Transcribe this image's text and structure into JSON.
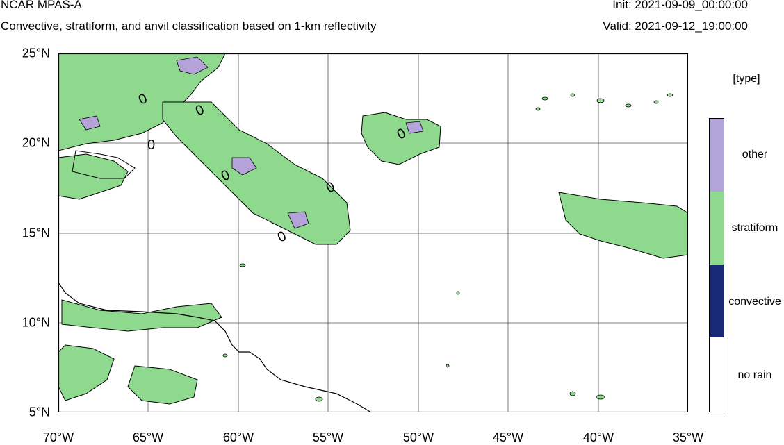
{
  "header": {
    "title": "NCAR MPAS-A",
    "subtitle": "Convective, stratiform, and anvil classification based on 1-km reflectivity",
    "init": "Init: 2021-09-09_00:00:00",
    "valid": "Valid: 2021-09-12_19:00:00"
  },
  "axes": {
    "lat_labels": [
      "25°N",
      "20°N",
      "15°N",
      "10°N",
      "5°N"
    ],
    "lon_labels": [
      "70°W",
      "65°W",
      "60°W",
      "55°W",
      "50°W",
      "45°W",
      "40°W",
      "35°W"
    ],
    "lat_range": [
      5,
      25
    ],
    "lon_range": [
      -70,
      -35
    ],
    "grid": true
  },
  "contour_label": "0",
  "legend": {
    "title": "[type]",
    "items": [
      {
        "label": "other",
        "color": "#b3a3d9"
      },
      {
        "label": "stratiform",
        "color": "#8fd98f"
      },
      {
        "label": "convective",
        "color": "#1a2878"
      },
      {
        "label": "no rain",
        "color": "#ffffff"
      }
    ]
  }
}
